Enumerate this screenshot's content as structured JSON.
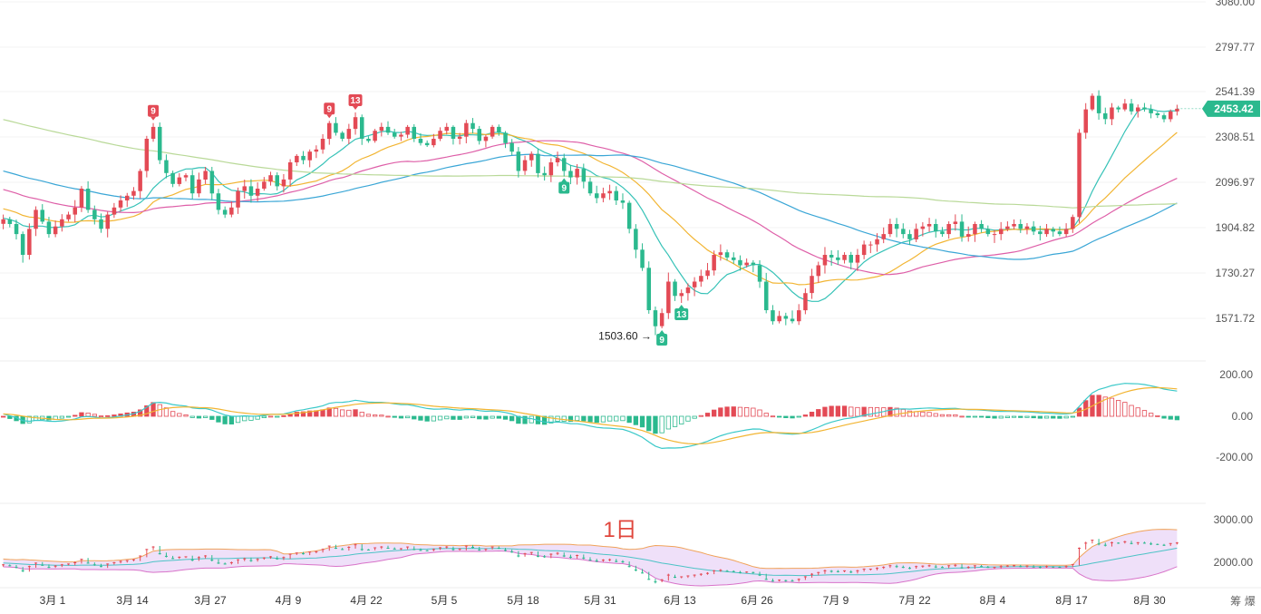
{
  "colors": {
    "up": "#e34a55",
    "down": "#2bb98e",
    "ma_yellow": "#f2b533",
    "ma_cyan": "#36c2b7",
    "ma_pink": "#de5fa8",
    "ma_blue": "#3aa6d6",
    "ma_green": "#b9d998",
    "macd_dif": "#3bc9c9",
    "macd_dea": "#f2b533",
    "band_fill": "#e9d5f7",
    "price_tag": "#2bb98e"
  },
  "price_axis": {
    "labels": [
      "3080.00",
      "2797.77",
      "2541.39",
      "2308.51",
      "2096.97",
      "1904.82",
      "1730.27",
      "1571.72"
    ],
    "current_price": "2453.42"
  },
  "macd_axis": {
    "labels": [
      "200.00",
      "0.00",
      "-200.00"
    ]
  },
  "band_axis": {
    "labels": [
      "3000.00",
      "2000.00"
    ]
  },
  "date_axis": {
    "labels": [
      "3月 1",
      "3月 14",
      "3月 27",
      "4月 9",
      "4月 22",
      "5月 5",
      "5月 18",
      "5月 31",
      "6月 13",
      "6月 26",
      "7月 9",
      "7月 22",
      "8月 4",
      "8月 17",
      "8月 30"
    ]
  },
  "period_label": "1日",
  "corner_label": "筹 爆",
  "annotations": {
    "low_price": "1503.60 →"
  },
  "markers": [
    {
      "label": "9",
      "type": "sell",
      "index": 23
    },
    {
      "label": "9",
      "type": "sell",
      "index": 50
    },
    {
      "label": "13",
      "type": "sell",
      "index": 54
    },
    {
      "label": "9",
      "type": "buy",
      "index": 86
    },
    {
      "label": "9",
      "type": "buy",
      "index": 101
    },
    {
      "label": "13",
      "type": "buy",
      "index": 104
    }
  ],
  "chart_data": {
    "type": "candlestick",
    "interval": "1日",
    "close": [
      1940,
      1920,
      1880,
      1800,
      1900,
      1980,
      1930,
      1880,
      1910,
      1940,
      1960,
      1990,
      2070,
      1980,
      1940,
      1900,
      1960,
      1990,
      2020,
      2040,
      2060,
      2150,
      2300,
      2360,
      2200,
      2140,
      2090,
      2120,
      2130,
      2050,
      2110,
      2150,
      2050,
      1980,
      1960,
      1990,
      2060,
      2080,
      2040,
      2070,
      2100,
      2130,
      2080,
      2110,
      2190,
      2220,
      2200,
      2240,
      2250,
      2300,
      2380,
      2330,
      2300,
      2350,
      2410,
      2300,
      2290,
      2340,
      2360,
      2330,
      2310,
      2320,
      2360,
      2300,
      2280,
      2270,
      2300,
      2340,
      2360,
      2300,
      2310,
      2380,
      2350,
      2290,
      2310,
      2360,
      2330,
      2280,
      2240,
      2150,
      2200,
      2230,
      2140,
      2130,
      2190,
      2210,
      2150,
      2120,
      2160,
      2100,
      2050,
      2030,
      2050,
      2060,
      2020,
      2010,
      1900,
      1820,
      1750,
      1600,
      1540,
      1590,
      1700,
      1650,
      1660,
      1680,
      1700,
      1720,
      1740,
      1800,
      1810,
      1790,
      1780,
      1760,
      1770,
      1760,
      1700,
      1600,
      1560,
      1580,
      1570,
      1560,
      1600,
      1660,
      1720,
      1760,
      1800,
      1790,
      1780,
      1800,
      1770,
      1800,
      1840,
      1840,
      1860,
      1880,
      1920,
      1900,
      1880,
      1860,
      1900,
      1910,
      1920,
      1890,
      1880,
      1920,
      1930,
      1870,
      1880,
      1920,
      1900,
      1880,
      1880,
      1900,
      1910,
      1920,
      1900,
      1910,
      1890,
      1880,
      1900,
      1890,
      1880,
      1900,
      1950,
      2330,
      2450,
      2520,
      2430,
      2400,
      2460,
      2450,
      2480,
      2440,
      2460,
      2450,
      2430,
      2420,
      2400,
      2440,
      2453.42
    ],
    "moving_averages": [
      "ma_yellow",
      "ma_cyan",
      "ma_pink",
      "ma_blue",
      "ma_green"
    ],
    "macd": {
      "ylim": [
        -200,
        200
      ]
    },
    "band": {
      "ylim": [
        2000,
        3000
      ]
    },
    "ylim": [
      1480,
      3080
    ],
    "low_annotation": 1503.6
  }
}
